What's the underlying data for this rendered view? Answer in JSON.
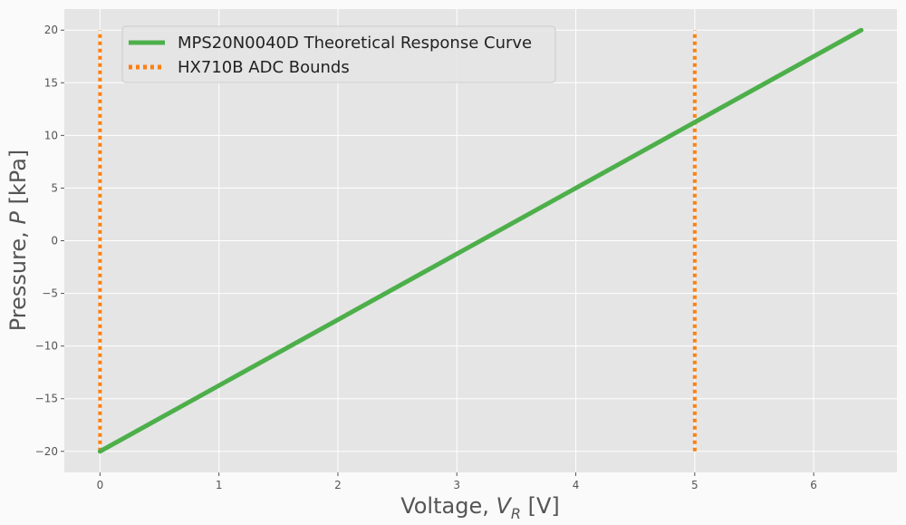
{
  "chart_data": {
    "type": "line",
    "xlabel": {
      "prefix": "Voltage, ",
      "var": "V",
      "sub": "R",
      "suffix": " [V]"
    },
    "ylabel": {
      "prefix": "Pressure, ",
      "var": "P",
      "suffix": " [kPa]"
    },
    "xlim": [
      -0.3,
      6.7
    ],
    "ylim": [
      -22,
      22
    ],
    "xticks": [
      0,
      1,
      2,
      3,
      4,
      5,
      6
    ],
    "yticks": [
      -20,
      -15,
      -10,
      -5,
      0,
      5,
      10,
      15,
      20
    ],
    "xtick_labels": [
      "0",
      "1",
      "2",
      "3",
      "4",
      "5",
      "6"
    ],
    "ytick_labels": [
      "−20",
      "−15",
      "−10",
      "−5",
      "0",
      "5",
      "10",
      "15",
      "20"
    ],
    "grid": true,
    "legend_position": "top-left",
    "series": [
      {
        "name": "MPS20N0040D Theoretical Response Curve",
        "style": "solid",
        "color": "#4daf4a",
        "x": [
          0,
          6.4
        ],
        "y": [
          -20,
          20
        ]
      },
      {
        "name": "HX710B ADC Bounds",
        "style": "dotted",
        "color": "#ff7f0e",
        "segments": [
          {
            "x": [
              0,
              0
            ],
            "y": [
              -20,
              20
            ]
          },
          {
            "x": [
              5,
              5
            ],
            "y": [
              -20,
              20
            ]
          }
        ]
      }
    ]
  }
}
